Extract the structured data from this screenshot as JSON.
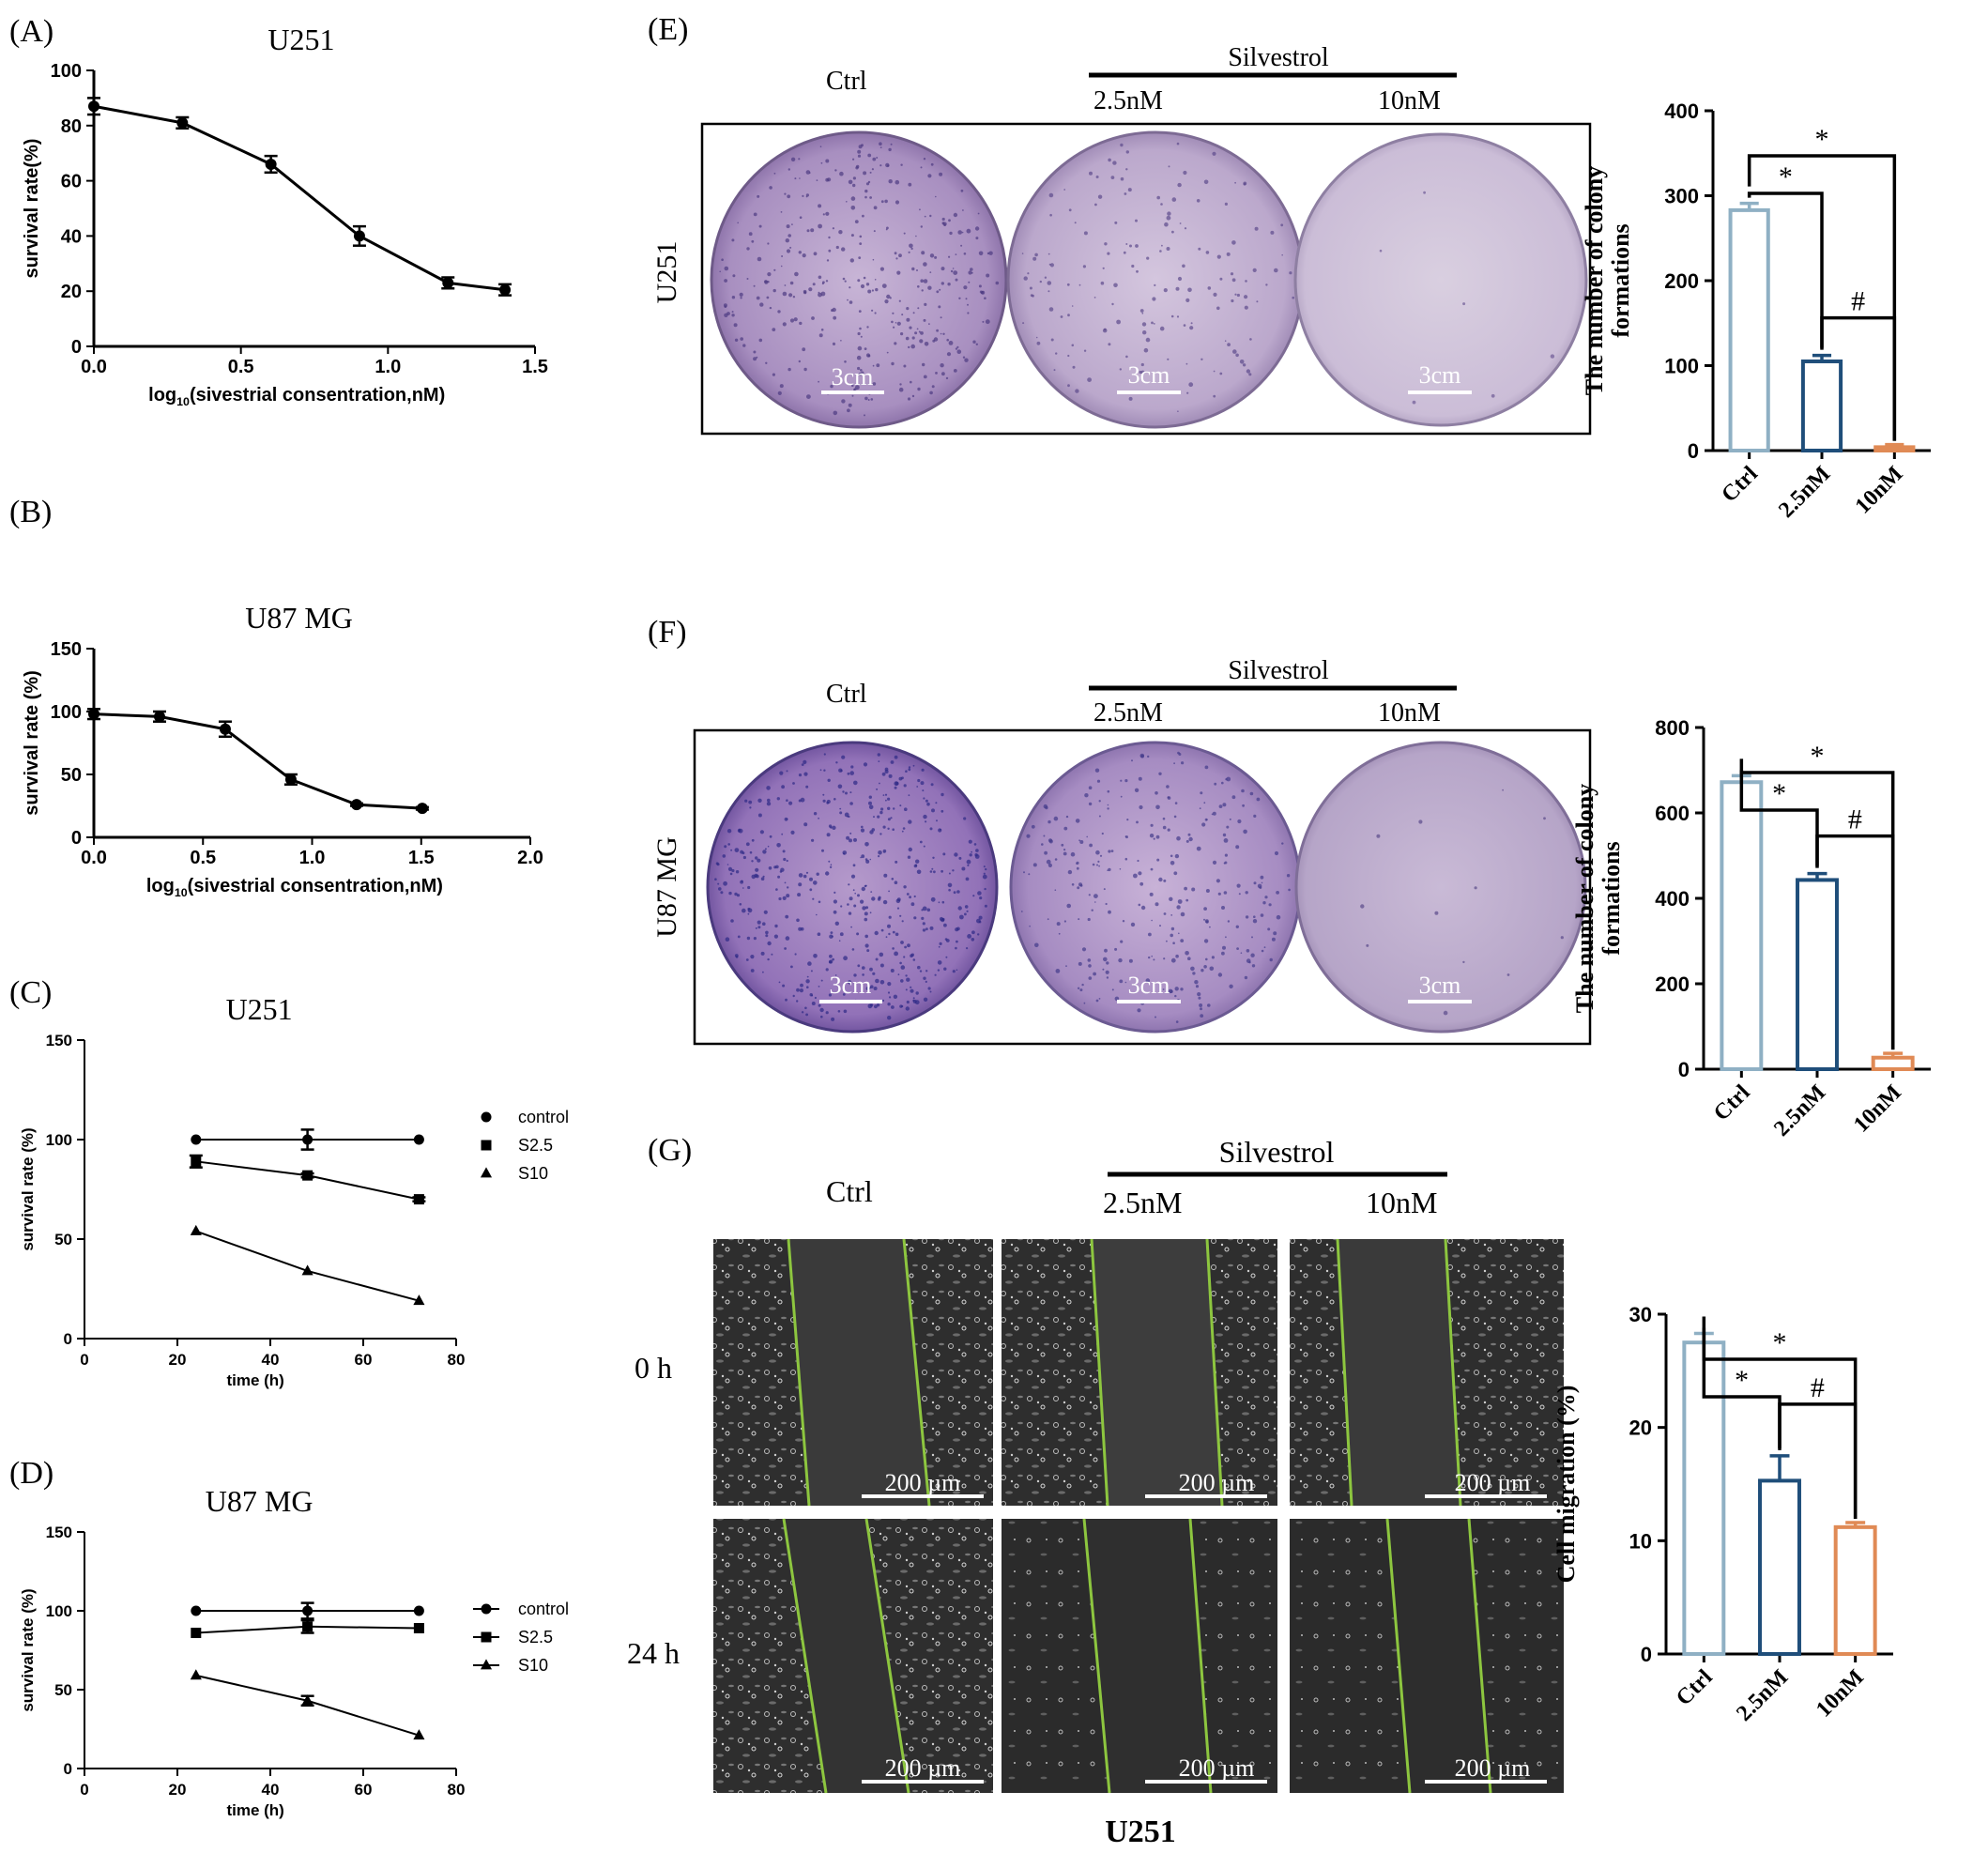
{
  "colors": {
    "ctrl": "#8fb0c4",
    "s25": "#1f4e7a",
    "s10": "#e08a55",
    "dish_purple": "#8a6aa8",
    "wound_line": "#8dc63f"
  },
  "panel_letters": {
    "A": "(A)",
    "B": "(B)",
    "C": "(C)",
    "D": "(D)",
    "E": "(E)",
    "F": "(F)",
    "G": "(G)"
  },
  "images": {
    "silvestrol_label": "Silvestrol",
    "ctrl_label": "Ctrl",
    "dose1_label": "2.5nM",
    "dose2_label": "10nM",
    "scale_3cm": "3cm",
    "scale_200um": "200 µm",
    "row_u251": "U251",
    "row_u87": "U87 MG",
    "time_0h": "0 h",
    "time_24h": "24 h",
    "footer_u251": "U251"
  },
  "chart_data": [
    {
      "id": "A",
      "type": "line",
      "title": "U251",
      "xlabel_prefix": "log",
      "xlabel_sub": "10",
      "xlabel_rest": "(sivestrial consentration,nM)",
      "ylabel": "survival rate(%)",
      "xlim": [
        0,
        1.5
      ],
      "ylim": [
        0,
        100
      ],
      "xticks": [
        0,
        0.5,
        1.0,
        1.5
      ],
      "xtick_labels": [
        "0.0",
        "0.5",
        "1.0",
        "1.5"
      ],
      "yticks": [
        0,
        20,
        40,
        60,
        80,
        100
      ],
      "ytick_labels": [
        "0",
        "20",
        "40",
        "60",
        "80",
        "100"
      ],
      "series": [
        {
          "x": [
            0,
            0.301,
            0.602,
            0.903,
            1.204,
            1.398
          ],
          "y": [
            87,
            81,
            66,
            40,
            23,
            20.5
          ],
          "err": [
            3,
            2,
            3,
            3.5,
            2,
            2
          ],
          "marker": "circle"
        }
      ]
    },
    {
      "id": "B",
      "type": "line",
      "title": "U87 MG",
      "xlabel_prefix": "log",
      "xlabel_sub": "10",
      "xlabel_rest": "(sivestrial consentration,nM)",
      "ylabel": "survival rate (%)",
      "xlim": [
        0,
        2.0
      ],
      "ylim": [
        0,
        150
      ],
      "xticks": [
        0,
        0.5,
        1.0,
        1.5,
        2.0
      ],
      "xtick_labels": [
        "0.0",
        "0.5",
        "1.0",
        "1.5",
        "2.0"
      ],
      "yticks": [
        0,
        50,
        100,
        150
      ],
      "ytick_labels": [
        "0",
        "50",
        "100",
        "150"
      ],
      "series": [
        {
          "x": [
            0,
            0.301,
            0.602,
            0.903,
            1.204,
            1.505
          ],
          "y": [
            98,
            96,
            86,
            46,
            26,
            23
          ],
          "err": [
            4,
            4,
            6,
            4,
            1,
            1
          ],
          "marker": "circle"
        }
      ]
    },
    {
      "id": "C",
      "type": "line",
      "title": "U251",
      "xlabel": "time (h)",
      "ylabel": "survival rate (%)",
      "xlim": [
        0,
        80
      ],
      "ylim": [
        0,
        150
      ],
      "xticks": [
        0,
        20,
        40,
        60,
        80
      ],
      "xtick_labels": [
        "0",
        "20",
        "40",
        "60",
        "80"
      ],
      "yticks": [
        0,
        50,
        100,
        150
      ],
      "ytick_labels": [
        "0",
        "50",
        "100",
        "150"
      ],
      "legend_lines": false,
      "series": [
        {
          "name": "control",
          "marker": "circle",
          "x": [
            24,
            48,
            72
          ],
          "y": [
            100,
            100,
            100
          ],
          "err": [
            0,
            5,
            0
          ]
        },
        {
          "name": "S2.5",
          "marker": "square",
          "x": [
            24,
            48,
            72
          ],
          "y": [
            89,
            82,
            70
          ],
          "err": [
            3,
            1,
            1
          ]
        },
        {
          "name": "S10",
          "marker": "triangle",
          "x": [
            24,
            48,
            72
          ],
          "y": [
            54,
            34,
            19
          ],
          "err": [
            0,
            0,
            0
          ]
        }
      ]
    },
    {
      "id": "D",
      "type": "line",
      "title": "U87 MG",
      "xlabel": "time (h)",
      "ylabel": "survival rate (%)",
      "xlim": [
        0,
        80
      ],
      "ylim": [
        0,
        150
      ],
      "xticks": [
        0,
        20,
        40,
        60,
        80
      ],
      "xtick_labels": [
        "0",
        "20",
        "40",
        "60",
        "80"
      ],
      "yticks": [
        0,
        50,
        100,
        150
      ],
      "ytick_labels": [
        "0",
        "50",
        "100",
        "150"
      ],
      "legend_lines": true,
      "series": [
        {
          "name": "control",
          "marker": "circle",
          "x": [
            24,
            48,
            72
          ],
          "y": [
            100,
            100,
            100
          ],
          "err": [
            0,
            5,
            0
          ]
        },
        {
          "name": "S2.5",
          "marker": "square",
          "x": [
            24,
            48,
            72
          ],
          "y": [
            86,
            90,
            89
          ],
          "err": [
            0,
            4,
            0
          ]
        },
        {
          "name": "S10",
          "marker": "triangle",
          "x": [
            24,
            48,
            72
          ],
          "y": [
            59,
            43,
            21
          ],
          "err": [
            0,
            3,
            0
          ]
        }
      ]
    },
    {
      "id": "E",
      "type": "bar",
      "ylabel_lines": [
        "The number of colony",
        "formations"
      ],
      "categories": [
        "Ctrl",
        "2.5nM",
        "10nM"
      ],
      "values": [
        283,
        105,
        4
      ],
      "err": [
        8,
        7,
        3
      ],
      "ylim": [
        0,
        400
      ],
      "yticks": [
        0,
        100,
        200,
        300,
        400
      ],
      "ytick_labels": [
        "0",
        "100",
        "200",
        "300",
        "400"
      ],
      "sig": [
        {
          "from": 0,
          "to": 2,
          "label": "*",
          "level": 0
        },
        {
          "from": 0,
          "to": 1,
          "label": "*",
          "level": 1
        },
        {
          "from": 1,
          "to": 2,
          "label": "#",
          "level": 2
        }
      ]
    },
    {
      "id": "F",
      "type": "bar",
      "ylabel_lines": [
        "The number of colony",
        "formations"
      ],
      "categories": [
        "Ctrl",
        "2.5nM",
        "10nM"
      ],
      "values": [
        672,
        443,
        27
      ],
      "err": [
        15,
        15,
        10
      ],
      "ylim": [
        0,
        800
      ],
      "yticks": [
        0,
        200,
        400,
        600,
        800
      ],
      "ytick_labels": [
        "0",
        "200",
        "400",
        "600",
        "800"
      ],
      "sig": [
        {
          "from": 0,
          "to": 2,
          "label": "*",
          "level": 0
        },
        {
          "from": 0,
          "to": 1,
          "label": "*",
          "level": 1
        },
        {
          "from": 1,
          "to": 2,
          "label": "#",
          "level": 2
        }
      ]
    },
    {
      "id": "G",
      "type": "bar",
      "ylabel_lines": [
        "Cell migration (%)"
      ],
      "categories": [
        "Ctrl",
        "2.5nM",
        "10nM"
      ],
      "values": [
        27.5,
        15.3,
        11.2
      ],
      "err": [
        0.8,
        2.2,
        0.4
      ],
      "ylim": [
        0,
        30
      ],
      "yticks": [
        0,
        10,
        20,
        30
      ],
      "ytick_labels": [
        "0",
        "10",
        "20",
        "30"
      ],
      "sig": [
        {
          "from": 0,
          "to": 2,
          "label": "*",
          "level": 0
        },
        {
          "from": 0,
          "to": 1,
          "label": "*",
          "level": 1
        },
        {
          "from": 1,
          "to": 2,
          "label": "#",
          "level": 2
        }
      ]
    }
  ]
}
